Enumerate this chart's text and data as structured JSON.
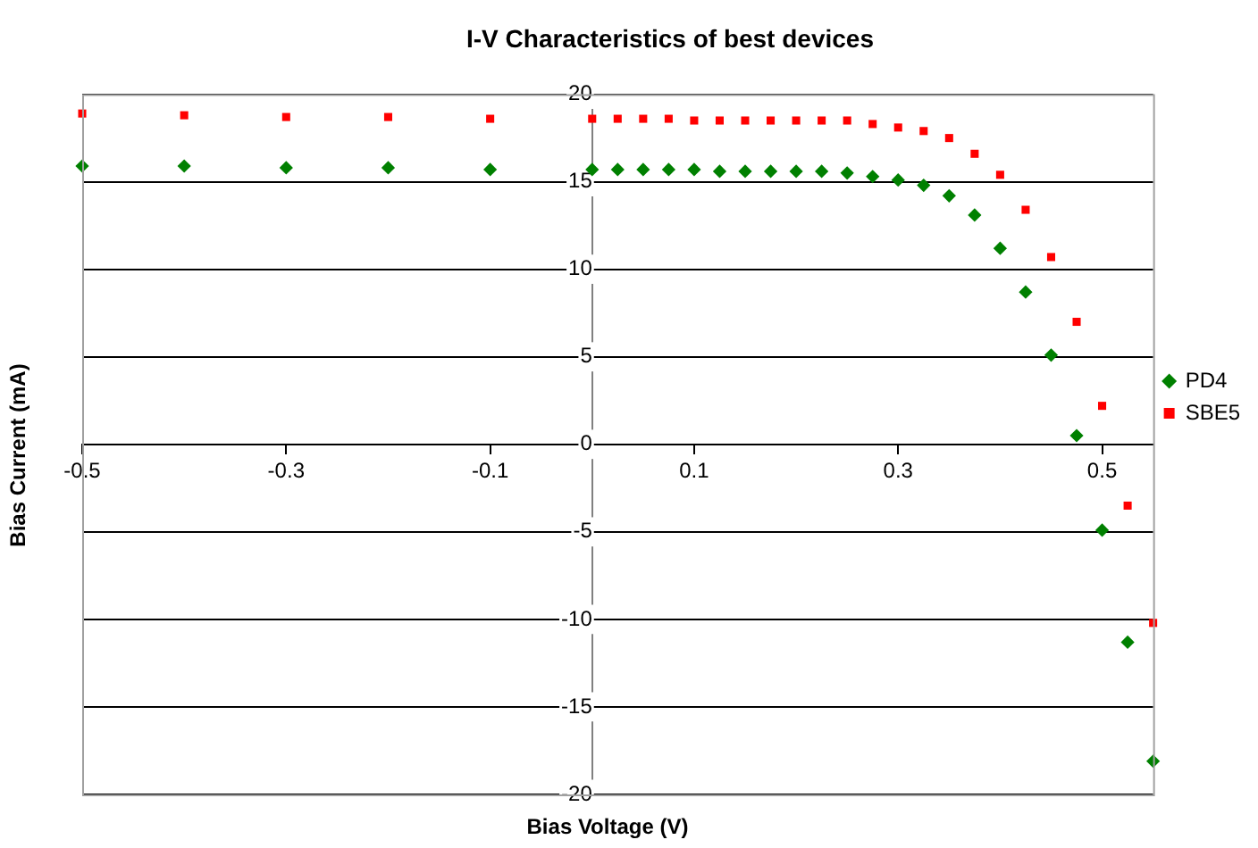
{
  "chart_data": {
    "type": "scatter",
    "title": "I-V Characteristics of best devices",
    "xlabel": "Bias Voltage (V)",
    "ylabel": "Bias Current (mA)",
    "xlim": [
      -0.5,
      0.55
    ],
    "xticks": [
      -0.5,
      -0.3,
      -0.1,
      0.1,
      0.3,
      0.5
    ],
    "ylim": [
      -20,
      20
    ],
    "yticks": [
      -20,
      -15,
      -10,
      -5,
      0,
      5,
      10,
      15,
      20
    ],
    "grid": "y",
    "legend": "right",
    "series": [
      {
        "name": "PD4",
        "color": "#008000",
        "marker": "diamond",
        "x": [
          -0.5,
          -0.4,
          -0.3,
          -0.2,
          -0.1,
          0,
          0.025,
          0.05,
          0.075,
          0.1,
          0.125,
          0.15,
          0.175,
          0.2,
          0.225,
          0.25,
          0.275,
          0.3,
          0.325,
          0.35,
          0.375,
          0.4,
          0.425,
          0.45,
          0.475,
          0.5,
          0.525,
          0.55
        ],
        "values": [
          15.9,
          15.9,
          15.8,
          15.8,
          15.7,
          15.7,
          15.7,
          15.7,
          15.7,
          15.7,
          15.6,
          15.6,
          15.6,
          15.6,
          15.6,
          15.5,
          15.3,
          15.1,
          14.8,
          14.2,
          13.1,
          11.2,
          8.7,
          5.1,
          0.5,
          -4.9,
          -11.3,
          -18.1
        ]
      },
      {
        "name": "SBE5",
        "color": "#ff0000",
        "marker": "square",
        "x": [
          -0.5,
          -0.4,
          -0.3,
          -0.2,
          -0.1,
          0,
          0.025,
          0.05,
          0.075,
          0.1,
          0.125,
          0.15,
          0.175,
          0.2,
          0.225,
          0.25,
          0.275,
          0.3,
          0.325,
          0.35,
          0.375,
          0.4,
          0.425,
          0.45,
          0.475,
          0.5,
          0.525,
          0.55
        ],
        "values": [
          18.9,
          18.8,
          18.7,
          18.7,
          18.6,
          18.6,
          18.6,
          18.6,
          18.6,
          18.5,
          18.5,
          18.5,
          18.5,
          18.5,
          18.5,
          18.5,
          18.3,
          18.1,
          17.9,
          17.5,
          16.6,
          15.4,
          13.4,
          10.7,
          7.0,
          2.2,
          -3.5,
          -10.2
        ]
      }
    ]
  }
}
